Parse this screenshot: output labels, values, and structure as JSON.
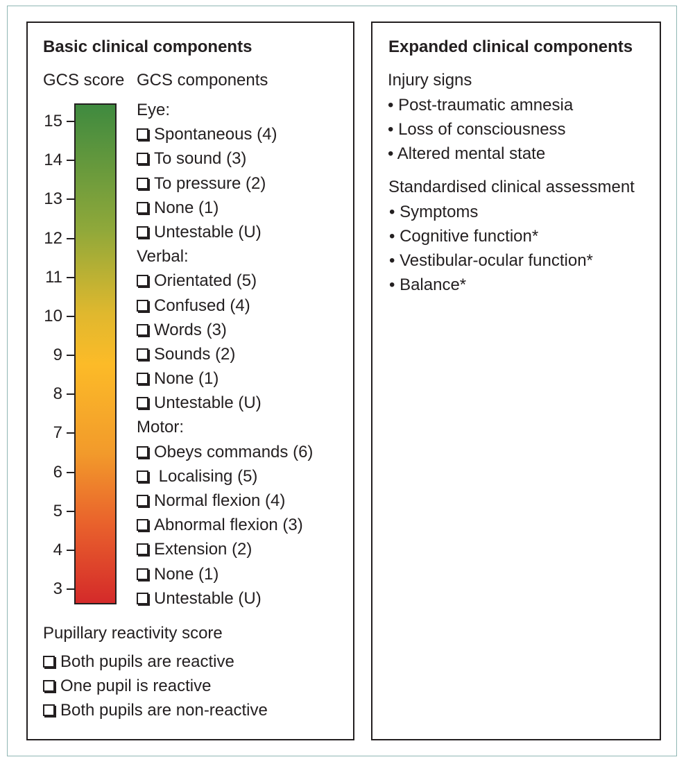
{
  "basic": {
    "title": "Basic clinical components",
    "gcs_score_label": "GCS score",
    "gcs_components_label": "GCS components",
    "score_ticks": [
      "15",
      "14",
      "13",
      "12",
      "11",
      "10",
      "9",
      "8",
      "7",
      "6",
      "5",
      "4",
      "3"
    ],
    "sections": [
      {
        "heading": "Eye:",
        "items": [
          "Spontaneous (4)",
          "To sound (3)",
          "To pressure (2)",
          "None (1)",
          "Untestable (U)"
        ]
      },
      {
        "heading": "Verbal:",
        "items": [
          "Orientated (5)",
          "Confused (4)",
          "Words (3)",
          "Sounds (2)",
          "None (1)",
          "Untestable (U)"
        ]
      },
      {
        "heading": "Motor:",
        "items": [
          "Obeys commands (6)",
          " Localising (5)",
          "Normal flexion (4)",
          "Abnormal flexion (3)",
          "Extension (2)",
          "None (1)",
          "Untestable (U)"
        ]
      }
    ],
    "pupillary_label": "Pupillary reactivity score",
    "pupillary_items": [
      "Both pupils are reactive",
      "One pupil is reactive",
      "Both pupils are non-reactive"
    ]
  },
  "expanded": {
    "title": "Expanded clinical components",
    "injury_heading": "Injury signs",
    "injury_items": [
      "• Post-traumatic amnesia",
      "• Loss of consciousness",
      "• Altered mental state"
    ],
    "assessment_heading": "Standardised clinical assessment",
    "assessment_items": [
      "• Symptoms",
      "• Cognitive function*",
      "• Vestibular-ocular function*",
      "• Balance*"
    ]
  },
  "colors": {
    "frame": "#8fb6b3",
    "bar_top": "#3f8a3f",
    "bar_mid": "#fcbb28",
    "bar_bottom": "#d42a2a"
  }
}
